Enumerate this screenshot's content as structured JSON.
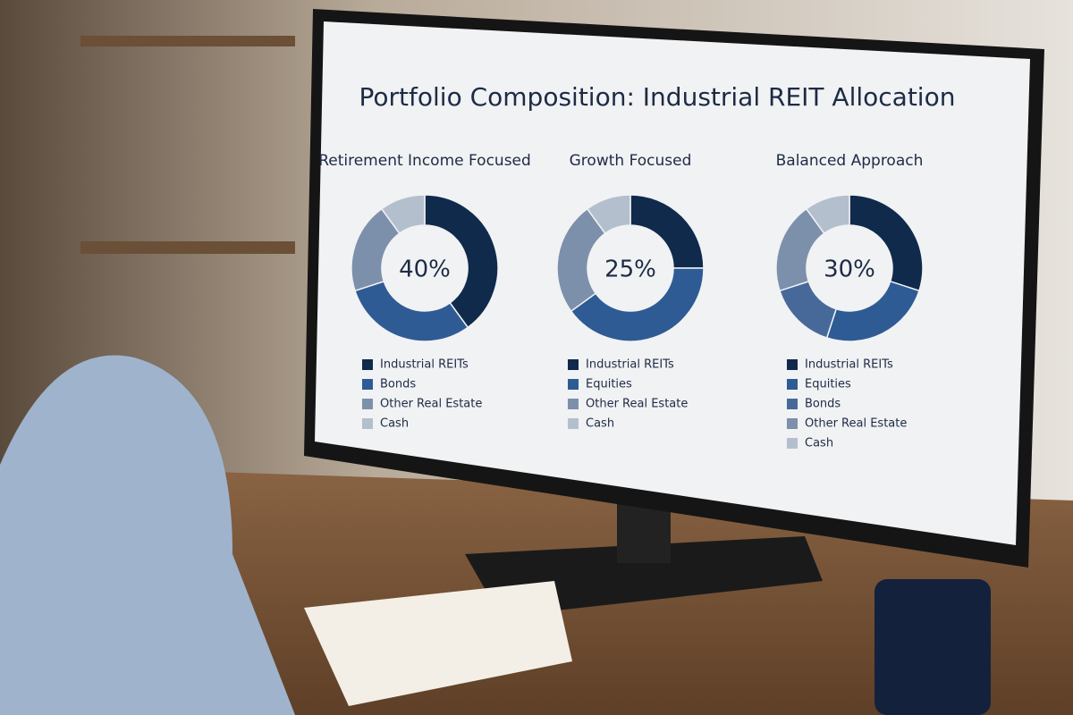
{
  "title": "Portfolio Composition: Industrial REIT Allocation",
  "chart_data": [
    {
      "type": "pie",
      "title": "Retirement Income Focused",
      "categories": [
        "Industrial REITs",
        "Bonds",
        "Other Real Estate",
        "Cash"
      ],
      "values": [
        40,
        30,
        20,
        10
      ],
      "value_labels": [
        "40%",
        null,
        null,
        null
      ],
      "colors": [
        "#102a4c",
        "#2f5b95",
        "#7d90ab",
        "#b4bfce"
      ]
    },
    {
      "type": "pie",
      "title": "Growth Focused",
      "categories": [
        "Industrial REITs",
        "Equities",
        "Other Real Estate",
        "Cash"
      ],
      "values": [
        25,
        40,
        25,
        10
      ],
      "value_labels": [
        "25%",
        null,
        null,
        null
      ],
      "colors": [
        "#102a4c",
        "#2f5b95",
        "#7d90ab",
        "#b4bfce"
      ]
    },
    {
      "type": "pie",
      "title": "Balanced Approach",
      "categories": [
        "Industrial REITs",
        "Equities",
        "Bonds",
        "Other Real Estate",
        "Cash"
      ],
      "values": [
        30,
        25,
        15,
        20,
        10
      ],
      "value_labels": [
        "30%",
        null,
        null,
        null,
        null
      ],
      "colors": [
        "#102a4c",
        "#2f5b95",
        "#47699a",
        "#7d90ab",
        "#b4bfce"
      ]
    }
  ]
}
